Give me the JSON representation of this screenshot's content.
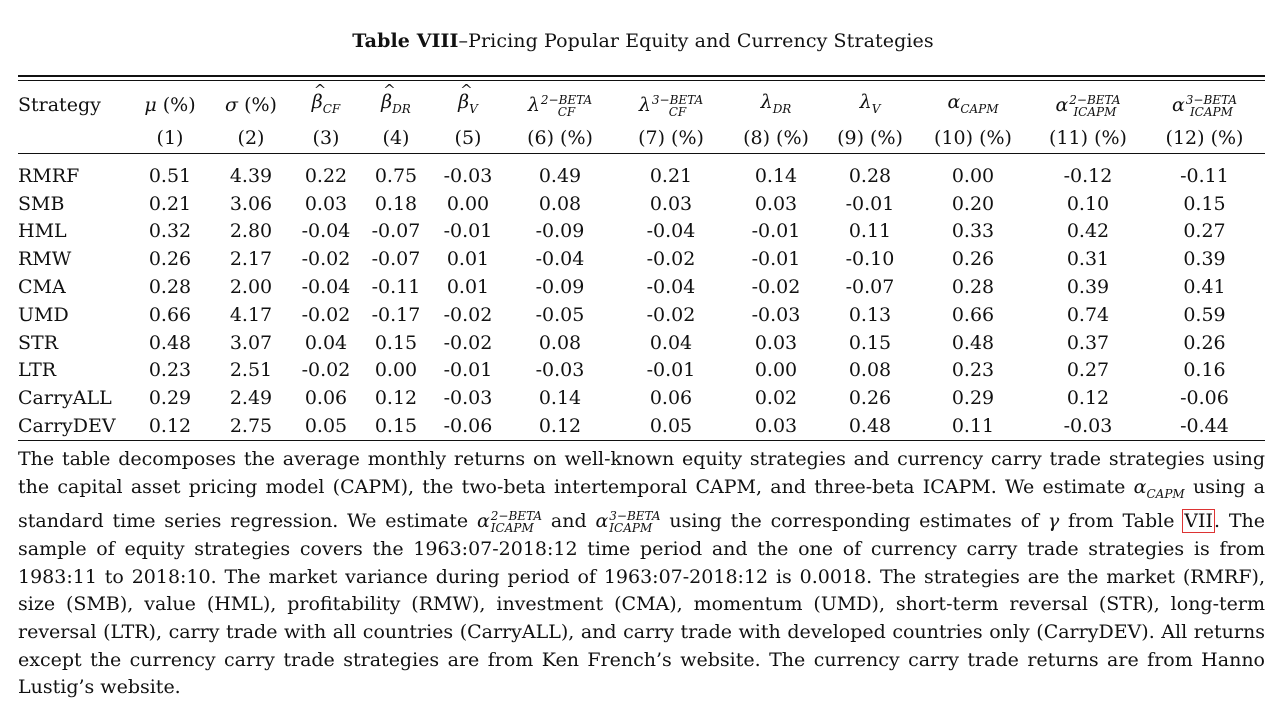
{
  "caption": {
    "label": "Table VIII",
    "title": "–Pricing Popular Equity and Currency Strategies"
  },
  "columns": [
    {
      "name": "Strategy",
      "num": ""
    },
    {
      "name": "μ (%)",
      "num": "(1)"
    },
    {
      "name": "σ (%)",
      "num": "(2)"
    },
    {
      "name": "β̂_CF",
      "num": "(3)"
    },
    {
      "name": "β̂_DR",
      "num": "(4)"
    },
    {
      "name": "β̂_V",
      "num": "(5)"
    },
    {
      "name": "λ_CF^2−BETA",
      "num": "(6) (%)"
    },
    {
      "name": "λ_CF^3−BETA",
      "num": "(7) (%)"
    },
    {
      "name": "λ_DR",
      "num": "(8) (%)"
    },
    {
      "name": "λ_V",
      "num": "(9) (%)"
    },
    {
      "name": "α_CAPM",
      "num": "(10) (%)"
    },
    {
      "name": "α_ICAPM^2−BETA",
      "num": "(11) (%)"
    },
    {
      "name": "α_ICAPM^3−BETA",
      "num": "(12) (%)"
    }
  ],
  "header_symbols": {
    "mu": "μ",
    "sigma": "σ",
    "pct": "(%)",
    "beta": "β",
    "lambda": "λ",
    "alpha": "α",
    "cf": "CF",
    "dr": "DR",
    "v": "V",
    "capm": "CAPM",
    "icapm": "ICAPM",
    "two_beta": "2−BETA",
    "three_beta": "3−BETA"
  },
  "rows": [
    {
      "strategy": "RMRF",
      "v": [
        "0.51",
        "4.39",
        "0.22",
        "0.75",
        "-0.03",
        "0.49",
        "0.21",
        "0.14",
        "0.28",
        "0.00",
        "-0.12",
        "-0.11"
      ]
    },
    {
      "strategy": "SMB",
      "v": [
        "0.21",
        "3.06",
        "0.03",
        "0.18",
        "0.00",
        "0.08",
        "0.03",
        "0.03",
        "-0.01",
        "0.20",
        "0.10",
        "0.15"
      ]
    },
    {
      "strategy": "HML",
      "v": [
        "0.32",
        "2.80",
        "-0.04",
        "-0.07",
        "-0.01",
        "-0.09",
        "-0.04",
        "-0.01",
        "0.11",
        "0.33",
        "0.42",
        "0.27"
      ]
    },
    {
      "strategy": "RMW",
      "v": [
        "0.26",
        "2.17",
        "-0.02",
        "-0.07",
        "0.01",
        "-0.04",
        "-0.02",
        "-0.01",
        "-0.10",
        "0.26",
        "0.31",
        "0.39"
      ]
    },
    {
      "strategy": "CMA",
      "v": [
        "0.28",
        "2.00",
        "-0.04",
        "-0.11",
        "0.01",
        "-0.09",
        "-0.04",
        "-0.02",
        "-0.07",
        "0.28",
        "0.39",
        "0.41"
      ]
    },
    {
      "strategy": "UMD",
      "v": [
        "0.66",
        "4.17",
        "-0.02",
        "-0.17",
        "-0.02",
        "-0.05",
        "-0.02",
        "-0.03",
        "0.13",
        "0.66",
        "0.74",
        "0.59"
      ]
    },
    {
      "strategy": "STR",
      "v": [
        "0.48",
        "3.07",
        "0.04",
        "0.15",
        "-0.02",
        "0.08",
        "0.04",
        "0.03",
        "0.15",
        "0.48",
        "0.37",
        "0.26"
      ]
    },
    {
      "strategy": "LTR",
      "v": [
        "0.23",
        "2.51",
        "-0.02",
        "0.00",
        "-0.01",
        "-0.03",
        "-0.01",
        "0.00",
        "0.08",
        "0.23",
        "0.27",
        "0.16"
      ]
    },
    {
      "strategy": "CarryALL",
      "v": [
        "0.29",
        "2.49",
        "0.06",
        "0.12",
        "-0.03",
        "0.14",
        "0.06",
        "0.02",
        "0.26",
        "0.29",
        "0.12",
        "-0.06"
      ]
    },
    {
      "strategy": "CarryDEV",
      "v": [
        "0.12",
        "2.75",
        "0.05",
        "0.15",
        "-0.06",
        "0.12",
        "0.05",
        "0.03",
        "0.48",
        "0.11",
        "-0.03",
        "-0.44"
      ]
    }
  ],
  "notes": {
    "s1": "The table decomposes the average monthly returns on well-known equity strategies and currency carry trade strategies using the capital asset pricing model (CAPM), the two-beta intertemporal CAPM, and three-beta ICAPM. We estimate ",
    "s2": " using a standard time series regression. We estimate ",
    "s3": " and ",
    "s4": " using the corresponding estimates of ",
    "gamma": "γ",
    "s5": " from Table ",
    "table_ref": "VII",
    "s6": ". The sample of equity strategies covers the 1963:07-2018:12 time period and the one of currency carry trade strategies is from 1983:11 to 2018:10. The market variance during period of 1963:07-2018:12 is 0.0018. The strategies are the market (RMRF), size (SMB), value (HML), profitability (RMW), investment (CMA), momentum (UMD), short-term reversal (STR), long-term reversal (LTR), carry trade with all countries (CarryALL), and carry trade with developed countries only (CarryDEV). All returns except the currency carry trade strategies are from Ken French’s website. The currency carry trade returns are from Hanno Lustig’s website."
  }
}
